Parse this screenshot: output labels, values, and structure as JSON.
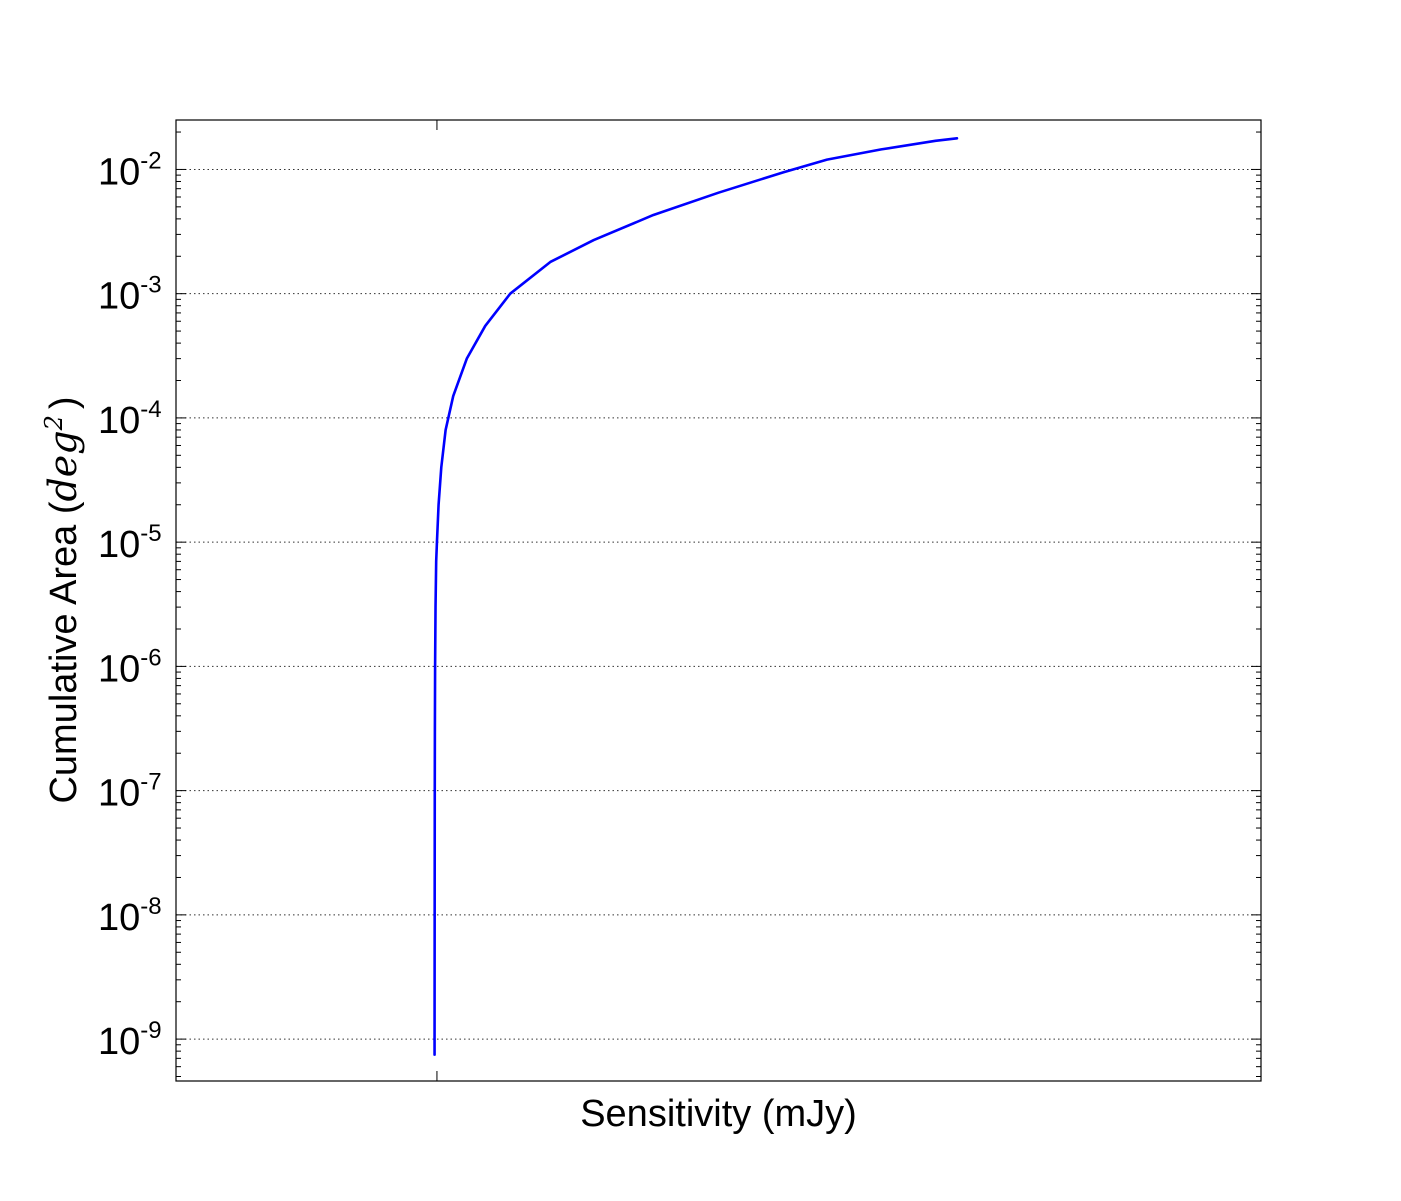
{
  "chart_data": {
    "type": "line",
    "title": "",
    "xlabel": "Sensitivity (mJy)",
    "ylabel": {
      "text": "Cumulative Area (",
      "math": "deg",
      "superscript": "2",
      "close": ")"
    },
    "y_scale": "log",
    "ylim": [
      4.6e-10,
      0.025
    ],
    "grid": {
      "y": true,
      "x": false,
      "style": "dotted"
    },
    "y_ticks": [
      {
        "base": "10",
        "exp": "-2",
        "value": 0.01
      },
      {
        "base": "10",
        "exp": "-3",
        "value": 0.001
      },
      {
        "base": "10",
        "exp": "-4",
        "value": 0.0001
      },
      {
        "base": "10",
        "exp": "-5",
        "value": 1e-05
      },
      {
        "base": "10",
        "exp": "-6",
        "value": 1e-06
      },
      {
        "base": "10",
        "exp": "-7",
        "value": 1e-07
      },
      {
        "base": "10",
        "exp": "-8",
        "value": 1e-08
      },
      {
        "base": "10",
        "exp": "-9",
        "value": 1e-09
      }
    ],
    "x_ticks_labeled": false,
    "series": [
      {
        "color": "#0000ff",
        "points": [
          [
            0.2383,
            7.5e-10
          ],
          [
            0.2383,
            1e-09
          ],
          [
            0.2384,
            1e-08
          ],
          [
            0.2385,
            1e-07
          ],
          [
            0.2386,
            3e-07
          ],
          [
            0.2388,
            1e-06
          ],
          [
            0.2392,
            3e-06
          ],
          [
            0.2398,
            7e-06
          ],
          [
            0.2405,
            1e-05
          ],
          [
            0.242,
            2e-05
          ],
          [
            0.2445,
            4e-05
          ],
          [
            0.2485,
            8e-05
          ],
          [
            0.2555,
            0.00015
          ],
          [
            0.268,
            0.0003
          ],
          [
            0.285,
            0.00055
          ],
          [
            0.308,
            0.001
          ],
          [
            0.345,
            0.0018
          ],
          [
            0.385,
            0.0027
          ],
          [
            0.44,
            0.0043
          ],
          [
            0.5,
            0.0065
          ],
          [
            0.56,
            0.0095
          ],
          [
            0.6,
            0.012
          ],
          [
            0.65,
            0.0145
          ],
          [
            0.7,
            0.017
          ],
          [
            0.7198,
            0.0178
          ]
        ]
      }
    ],
    "xlim": [
      0,
      1
    ]
  }
}
